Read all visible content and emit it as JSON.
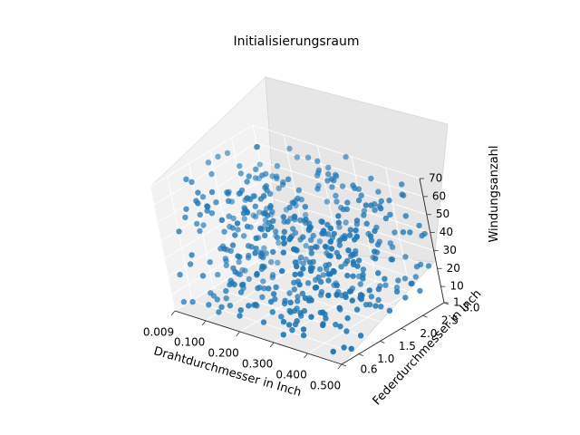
{
  "chart_data": {
    "type": "scatter",
    "title": "Initialisierungsraum",
    "xlabel": "Drahtdurchmesser in Inch",
    "ylabel": "Federdurchmesser in Inch",
    "zlabel": "Windungsanzahl",
    "x_ticks": [
      "0.009",
      "0.100",
      "0.200",
      "0.300",
      "0.400",
      "0.500"
    ],
    "y_ticks": [
      "0.6",
      "1.0",
      "1.5",
      "2.0",
      "2.5",
      "3.0"
    ],
    "z_ticks": [
      "1",
      "10",
      "20",
      "30",
      "40",
      "50",
      "60",
      "70"
    ],
    "x_range": [
      0.009,
      0.5
    ],
    "y_range": [
      0.6,
      3.0
    ],
    "z_range": [
      1,
      70
    ],
    "grid": true,
    "point_color": "#1f77b4",
    "n_points": 500
  }
}
